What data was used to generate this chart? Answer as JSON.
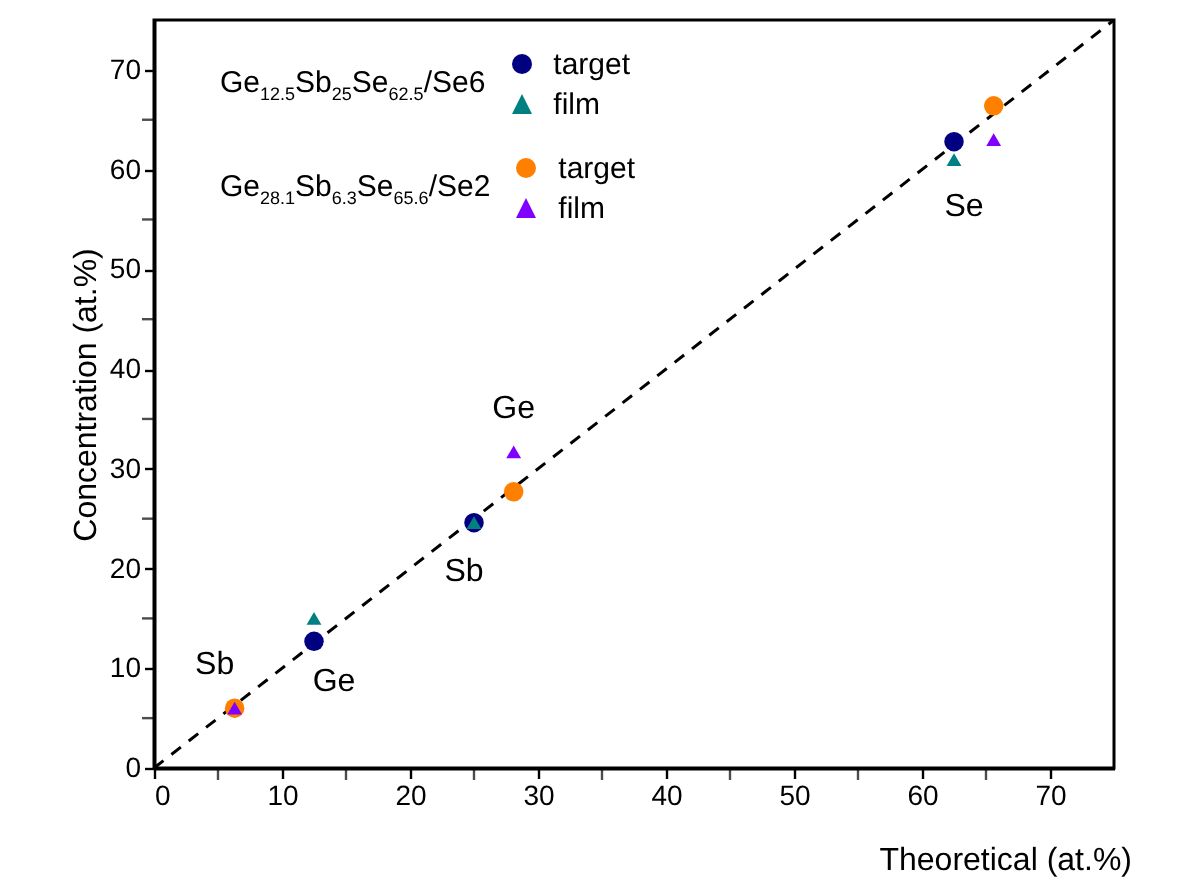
{
  "chart_data": {
    "type": "scatter",
    "xlabel": "Theoretical (at.%)",
    "ylabel": "Concentration (at.%)",
    "xlim": [
      0,
      75
    ],
    "ylim": [
      0,
      75
    ],
    "xticks": [
      0,
      {
        "value": 5,
        "label": null
      },
      10,
      {
        "value": 15,
        "label": null
      },
      20,
      {
        "value": 25,
        "label": null
      },
      30,
      {
        "value": 35,
        "label": null
      },
      40,
      {
        "value": 45,
        "label": null
      },
      50,
      {
        "value": 55,
        "label": null
      },
      60,
      {
        "value": 65,
        "label": null
      },
      70
    ],
    "yticks": [
      0,
      {
        "value": 5,
        "label": null
      },
      10,
      {
        "value": 15,
        "label": null
      },
      20,
      {
        "value": 25,
        "label": null
      },
      30,
      {
        "value": 35,
        "label": null
      },
      40,
      {
        "value": 45,
        "label": null
      },
      50,
      {
        "value": 55,
        "label": null
      },
      60,
      {
        "value": 65,
        "label": null
      },
      70
    ],
    "legend": "top left",
    "grid": false,
    "series": [
      {
        "type": "line",
        "color": "#000000",
        "line_style": "dashed",
        "marker": "none",
        "x": [
          0,
          75
        ],
        "values": [
          0,
          75
        ]
      },
      {
        "name": "target",
        "color": "#000080",
        "marker": "circle",
        "x": [
          12.5,
          25,
          62.5
        ],
        "values": [
          12.7,
          24.6,
          62.8
        ]
      },
      {
        "name": "film",
        "color": "#008080",
        "marker": "triangle",
        "x": [
          12.5,
          25,
          62.5
        ],
        "values": [
          15,
          24.6,
          61
        ]
      },
      {
        "name": "target",
        "color": "#ff8000",
        "marker": "circle",
        "x": [
          6.3,
          28.1,
          65.6
        ],
        "values": [
          6,
          27.7,
          66.4
        ]
      },
      {
        "name": "film",
        "color": "#8000ff",
        "marker": "triangle",
        "x": [
          6.3,
          28.1,
          65.6
        ],
        "values": [
          6,
          31.7,
          63
        ]
      }
    ],
    "annotations": [
      "Ge$_{12.5}$Sb$_{25}$Se$_{62.5}$/Se6",
      "Ge$_{28.1}$Sb$_{6.3}$Se$_{65.6}$/Se2",
      {
        "text": "Sb",
        "x": 6.3,
        "y": 6
      },
      {
        "text": "Ge",
        "x": 12.5,
        "y": 12.7
      },
      {
        "text": "Sb",
        "x": 25,
        "y": 24.6
      },
      {
        "text": "Ge",
        "x": 28.1,
        "y": 31.7
      },
      {
        "text": "Se",
        "x": 62.5,
        "y": 61
      }
    ]
  }
}
